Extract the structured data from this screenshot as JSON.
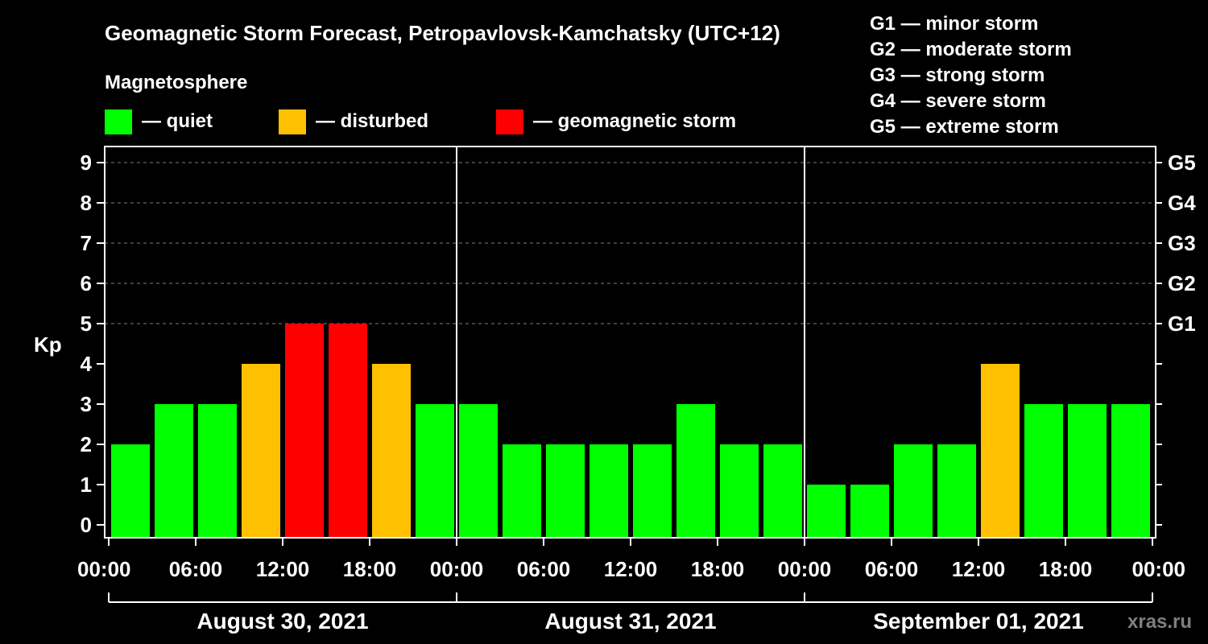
{
  "chart_data": {
    "type": "bar",
    "title": "Geomagnetic Storm Forecast, Petropavlovsk-Kamchatsky (UTC+12)",
    "ylabel": "Kp",
    "ylim": [
      0,
      9
    ],
    "y_ticks": [
      "0",
      "1",
      "2",
      "3",
      "4",
      "5",
      "6",
      "7",
      "8",
      "9"
    ],
    "right_ticks": [
      {
        "kp": 5,
        "label": "G1"
      },
      {
        "kp": 6,
        "label": "G2"
      },
      {
        "kp": 7,
        "label": "G3"
      },
      {
        "kp": 8,
        "label": "G4"
      },
      {
        "kp": 9,
        "label": "G5"
      }
    ],
    "x_tick_labels": [
      "00:00",
      "06:00",
      "12:00",
      "18:00",
      "00:00",
      "06:00",
      "12:00",
      "18:00",
      "00:00",
      "06:00",
      "12:00",
      "18:00",
      "00:00"
    ],
    "days": [
      "August 30, 2021",
      "August 31, 2021",
      "September 01, 2021"
    ],
    "interval_hours": 3,
    "values": [
      2,
      3,
      3,
      4,
      5,
      5,
      4,
      3,
      3,
      2,
      2,
      2,
      2,
      3,
      2,
      2,
      1,
      1,
      2,
      2,
      4,
      3,
      3,
      3
    ],
    "legend": {
      "title": "Magnetosphere",
      "items": [
        {
          "label": "— quiet",
          "color": "#00ff00"
        },
        {
          "label": "— disturbed",
          "color": "#ffc000"
        },
        {
          "label": "— geomagnetic storm",
          "color": "#ff0000"
        }
      ]
    },
    "storm_scale": [
      "G1 — minor storm",
      "G2 — moderate storm",
      "G3 — strong storm",
      "G4 — severe storm",
      "G5 — extreme storm"
    ],
    "colors": {
      "quiet": "#00ff00",
      "disturbed": "#ffc000",
      "storm": "#ff0000",
      "background": "#000000",
      "foreground": "#ffffff",
      "grid": "#808080"
    },
    "watermark": "xras.ru"
  }
}
